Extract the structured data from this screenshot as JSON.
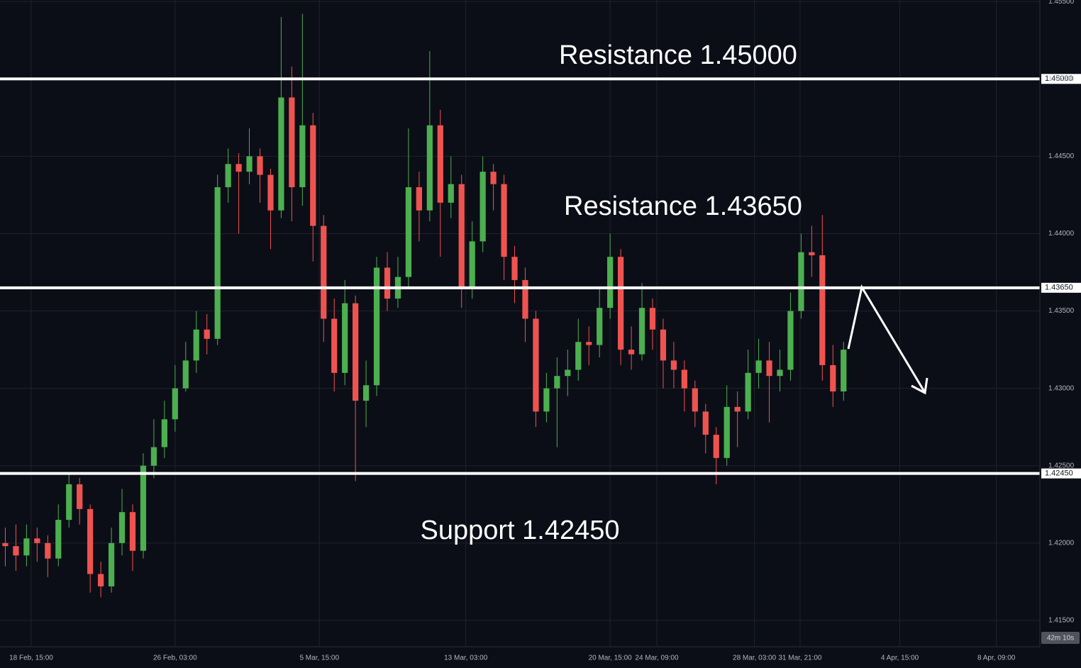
{
  "chart_data": {
    "type": "candlestick",
    "xlim": [
      -0.5,
      97.5
    ],
    "ylim": [
      1.4133,
      1.4551
    ],
    "grid": true,
    "up_color": "#4caf50",
    "down_color": "#ef5350",
    "countdown": "42m 10s",
    "yticks": [
      {
        "value": 1.415,
        "label": "1.41500"
      },
      {
        "value": 1.42,
        "label": "1.42000"
      },
      {
        "value": 1.425,
        "label": "1.42500"
      },
      {
        "value": 1.43,
        "label": "1.43000"
      },
      {
        "value": 1.435,
        "label": "1.43500"
      },
      {
        "value": 1.44,
        "label": "1.44000"
      },
      {
        "value": 1.445,
        "label": "1.44500"
      },
      {
        "value": 1.45,
        "label": "1.45000"
      },
      {
        "value": 1.455,
        "label": "1.45500"
      }
    ],
    "xticks": [
      {
        "value": 2.44,
        "label": "18 Feb, 15:00"
      },
      {
        "value": 16.0,
        "label": "26 Feb, 03:00"
      },
      {
        "value": 29.6,
        "label": "5 Mar, 15:00"
      },
      {
        "value": 43.4,
        "label": "13 Mar, 03:00"
      },
      {
        "value": 57.0,
        "label": "20 Mar, 15:00"
      },
      {
        "value": 61.4,
        "label": "24 Mar, 09:00"
      },
      {
        "value": 70.6,
        "label": "28 Mar, 03:00"
      },
      {
        "value": 74.9,
        "label": "31 Mar, 21:00"
      },
      {
        "value": 84.3,
        "label": "4 Apr, 15:00"
      },
      {
        "value": 93.4,
        "label": "8 Apr, 09:00"
      }
    ],
    "levels": [
      {
        "value": 1.45,
        "label": "1.45000",
        "text": "Resistance 1.45000"
      },
      {
        "value": 1.4365,
        "label": "1.43650",
        "text": "Resistance 1.43650"
      },
      {
        "value": 1.4245,
        "label": "1.42450",
        "text": "Support 1.42450"
      }
    ],
    "x": [
      0,
      1,
      2,
      3,
      4,
      5,
      6,
      7,
      8,
      9,
      10,
      11,
      12,
      13,
      14,
      15,
      16,
      17,
      18,
      19,
      20,
      21,
      22,
      23,
      24,
      25,
      26,
      27,
      28,
      29,
      30,
      31,
      32,
      33,
      34,
      35,
      36,
      37,
      38,
      39,
      40,
      41,
      42,
      43,
      44,
      45,
      46,
      47,
      48,
      49,
      50,
      51,
      52,
      53,
      54,
      55,
      56,
      57,
      58,
      59,
      60,
      61,
      62,
      63,
      64,
      65,
      66,
      67,
      68,
      69,
      70,
      71,
      72,
      73,
      74,
      75,
      76,
      77,
      78,
      79
    ],
    "open": [
      1.42,
      1.4198,
      1.4192,
      1.4203,
      1.42,
      1.419,
      1.4215,
      1.4238,
      1.4222,
      1.418,
      1.4172,
      1.42,
      1.422,
      1.4195,
      1.425,
      1.4262,
      1.428,
      1.43,
      1.4318,
      1.4338,
      1.4332,
      1.443,
      1.4445,
      1.444,
      1.445,
      1.4438,
      1.4415,
      1.4488,
      1.443,
      1.447,
      1.4405,
      1.4345,
      1.431,
      1.4355,
      1.4292,
      1.4302,
      1.4378,
      1.4358,
      1.4372,
      1.443,
      1.4415,
      1.447,
      1.442,
      1.4432,
      1.4365,
      1.4395,
      1.444,
      1.4432,
      1.4385,
      1.437,
      1.4345,
      1.4285,
      1.43,
      1.4308,
      1.4312,
      1.433,
      1.4328,
      1.4352,
      1.4385,
      1.4325,
      1.4322,
      1.4352,
      1.4338,
      1.4318,
      1.4312,
      1.43,
      1.4285,
      1.427,
      1.4255,
      1.4288,
      1.4285,
      1.431,
      1.4318,
      1.4308,
      1.4312,
      1.435,
      1.4388,
      1.4386,
      1.4315,
      1.4298
    ],
    "high": [
      1.421,
      1.4212,
      1.4212,
      1.421,
      1.4205,
      1.4225,
      1.4245,
      1.4242,
      1.4225,
      1.4188,
      1.421,
      1.4235,
      1.4225,
      1.4258,
      1.428,
      1.4292,
      1.4315,
      1.433,
      1.435,
      1.4348,
      1.4438,
      1.4455,
      1.4452,
      1.4468,
      1.4455,
      1.4442,
      1.454,
      1.4508,
      1.4542,
      1.4478,
      1.4412,
      1.4358,
      1.437,
      1.436,
      1.4318,
      1.4385,
      1.4388,
      1.4385,
      1.4468,
      1.444,
      1.4518,
      1.448,
      1.445,
      1.4438,
      1.4408,
      1.445,
      1.4445,
      1.4438,
      1.4392,
      1.4378,
      1.435,
      1.431,
      1.432,
      1.4325,
      1.4345,
      1.434,
      1.4365,
      1.44,
      1.439,
      1.434,
      1.4368,
      1.4358,
      1.4345,
      1.433,
      1.4318,
      1.4305,
      1.429,
      1.4275,
      1.4302,
      1.4298,
      1.4325,
      1.4332,
      1.433,
      1.4325,
      1.4362,
      1.44,
      1.4405,
      1.4412,
      1.4328,
      1.433
    ],
    "low": [
      1.4185,
      1.4182,
      1.4185,
      1.4188,
      1.4178,
      1.4185,
      1.421,
      1.4212,
      1.4168,
      1.4165,
      1.4168,
      1.4192,
      1.4182,
      1.419,
      1.4242,
      1.4255,
      1.4272,
      1.4298,
      1.431,
      1.4322,
      1.4328,
      1.442,
      1.44,
      1.4432,
      1.442,
      1.439,
      1.441,
      1.4408,
      1.4418,
      1.4382,
      1.433,
      1.4298,
      1.4302,
      1.424,
      1.4275,
      1.4295,
      1.435,
      1.4352,
      1.4365,
      1.4395,
      1.4408,
      1.4385,
      1.441,
      1.4352,
      1.4358,
      1.4388,
      1.4415,
      1.437,
      1.4355,
      1.433,
      1.4275,
      1.4278,
      1.4262,
      1.4295,
      1.4305,
      1.4315,
      1.432,
      1.4345,
      1.4315,
      1.4312,
      1.4318,
      1.4325,
      1.43,
      1.43,
      1.4285,
      1.4275,
      1.4258,
      1.4238,
      1.425,
      1.4262,
      1.428,
      1.43,
      1.4278,
      1.4298,
      1.4305,
      1.4345,
      1.4372,
      1.4305,
      1.4288,
      1.4292
    ],
    "close": [
      1.4198,
      1.4192,
      1.4203,
      1.42,
      1.419,
      1.4215,
      1.4238,
      1.4222,
      1.418,
      1.4172,
      1.42,
      1.422,
      1.4195,
      1.425,
      1.4262,
      1.428,
      1.43,
      1.4318,
      1.4338,
      1.4332,
      1.443,
      1.4445,
      1.444,
      1.445,
      1.4438,
      1.4415,
      1.4488,
      1.443,
      1.447,
      1.4405,
      1.4345,
      1.431,
      1.4355,
      1.4292,
      1.4302,
      1.4378,
      1.4358,
      1.4372,
      1.443,
      1.4415,
      1.447,
      1.442,
      1.4432,
      1.4365,
      1.4395,
      1.444,
      1.4432,
      1.4385,
      1.437,
      1.4345,
      1.4285,
      1.43,
      1.4308,
      1.4312,
      1.433,
      1.4328,
      1.4352,
      1.4385,
      1.4325,
      1.4322,
      1.4352,
      1.4338,
      1.4318,
      1.4312,
      1.43,
      1.4285,
      1.427,
      1.4255,
      1.4288,
      1.4285,
      1.431,
      1.4318,
      1.4308,
      1.4312,
      1.435,
      1.4388,
      1.4386,
      1.4315,
      1.4298,
      1.4325
    ]
  }
}
